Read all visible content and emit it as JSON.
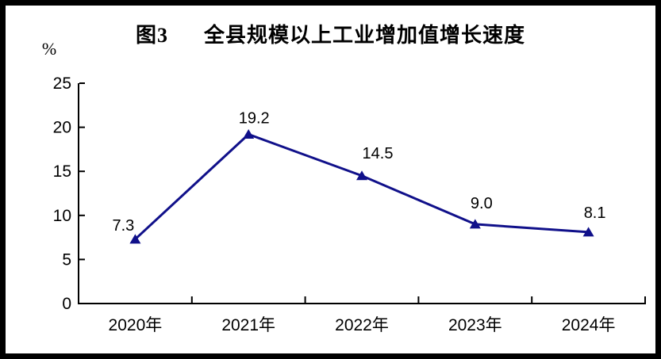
{
  "figure": {
    "title": "图3      全县规模以上工业增加值增长速度",
    "unit_label": "%"
  },
  "chart_data": {
    "type": "line",
    "title": "图3 全县规模以上工业增加值增长速度",
    "categories": [
      "2020年",
      "2021年",
      "2022年",
      "2023年",
      "2024年"
    ],
    "series": [
      {
        "name": "全县规模以上工业增加值增长速度",
        "values": [
          7.3,
          19.2,
          14.5,
          9.0,
          8.1
        ]
      }
    ],
    "data_labels": [
      "7.3",
      "19.2",
      "14.5",
      "9.0",
      "8.1"
    ],
    "xlabel": "",
    "ylabel": "%",
    "ylim": [
      0,
      25
    ],
    "yticks": [
      0,
      5,
      10,
      15,
      20,
      25
    ],
    "grid": false,
    "legend_position": "none",
    "line_color": "#10108a",
    "marker": "triangle",
    "axis_color": "#000000",
    "label_color": "#000000"
  }
}
